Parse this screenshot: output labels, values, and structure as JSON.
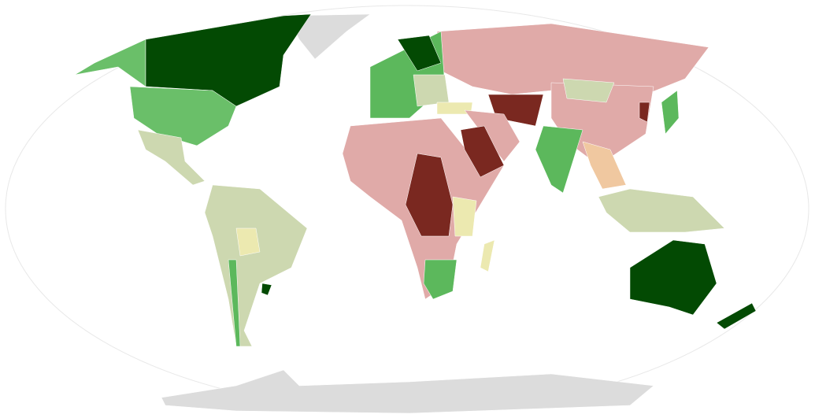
{
  "map": {
    "colors": [
      "#034a03",
      "#5cb85c",
      "#6abf69",
      "#cdd8b0",
      "#ece9b0",
      "#f0c8a0",
      "#e0aaa8",
      "#7a2820",
      "#dcdcdc"
    ]
  }
}
